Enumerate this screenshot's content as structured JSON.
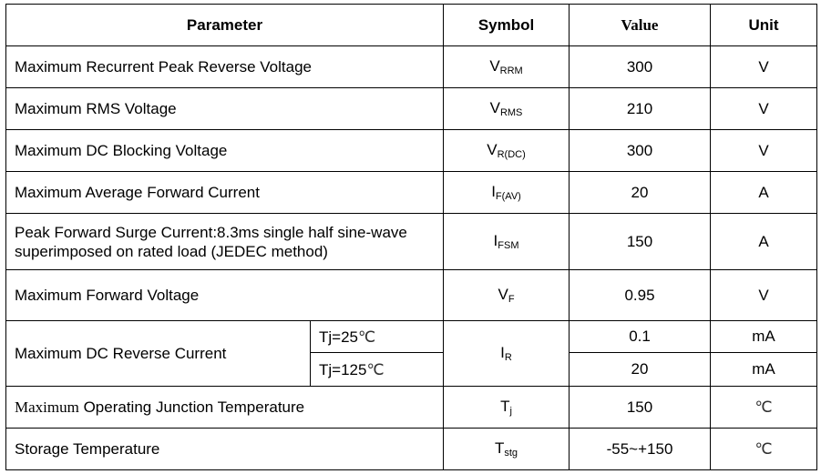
{
  "headers": {
    "parameter": "Parameter",
    "symbol": "Symbol",
    "value": "Value",
    "unit": "Unit"
  },
  "rows": [
    {
      "parameter": "Maximum Recurrent Peak Reverse Voltage",
      "symbol": "V",
      "sub": "RRM",
      "value": "300",
      "unit": "V"
    },
    {
      "parameter": "Maximum RMS Voltage",
      "symbol": "V",
      "sub": "RMS",
      "value": "210",
      "unit": "V"
    },
    {
      "parameter": "Maximum DC Blocking Voltage",
      "symbol": "V",
      "sub": "R(DC)",
      "value": "300",
      "unit": "V"
    },
    {
      "parameter": "Maximum Average Forward Current",
      "symbol": "I",
      "sub": "F(AV)",
      "value": "20",
      "unit": "A"
    },
    {
      "parameter": "Peak Forward Surge Current:8.3ms single half sine-wave superimposed on rated load (JEDEC method)",
      "symbol": "I",
      "sub": "FSM",
      "value": "150",
      "unit": "A"
    },
    {
      "parameter": "Maximum Forward Voltage",
      "symbol": "V",
      "sub": "F",
      "value": "0.95",
      "unit": "V"
    }
  ],
  "reverse_current": {
    "parameter": "Maximum DC Reverse Current",
    "symbol": "I",
    "sub": "R",
    "conditions": [
      {
        "label": "Tj=25",
        "deg": "℃",
        "value": "0.1",
        "unit": "mA"
      },
      {
        "label": "Tj=125",
        "deg": "℃",
        "value": "20",
        "unit": "mA"
      }
    ]
  },
  "operating": {
    "parameter_prefix": "Maximum",
    "parameter": " Operating Junction Temperature",
    "symbol": "T",
    "sub": "j",
    "value": "150",
    "unit": "℃"
  },
  "storage": {
    "parameter": "Storage Temperature",
    "symbol": "T",
    "sub": "stg",
    "value": "-55~+150",
    "unit": "℃"
  }
}
